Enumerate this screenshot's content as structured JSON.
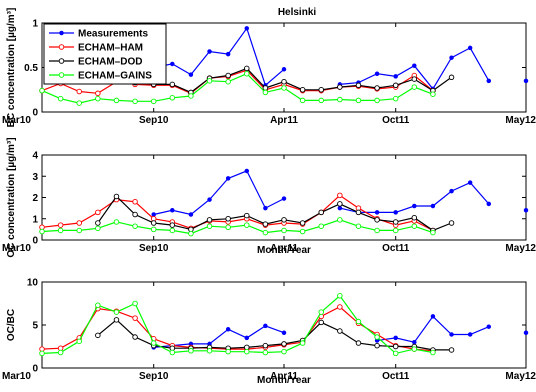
{
  "title": "Helsinki",
  "legend_position": "top-left",
  "legend": [
    {
      "name": "Measurements",
      "color": "#0000ff"
    },
    {
      "name": "ECHAM–HAM",
      "color": "#ff0000"
    },
    {
      "name": "ECHAM–DOD",
      "color": "#000000"
    },
    {
      "name": "ECHAM–GAINS",
      "color": "#00ff00"
    }
  ],
  "chart_data": [
    {
      "type": "line",
      "title": "Helsinki",
      "ylabel": "BC concentration [µg/m³]",
      "xlabel": "",
      "xlim": [
        0,
        26
      ],
      "ylim": [
        0,
        1
      ],
      "yticks": [
        "0",
        "0.5",
        "1"
      ],
      "ytick_values": [
        0,
        0.5,
        1
      ],
      "xticks": [
        "Mar10",
        "Sep10",
        "Apr11",
        "Oct11",
        "May12"
      ],
      "xtick_values": [
        0,
        6,
        13,
        19,
        26
      ],
      "series": [
        {
          "name": "Measurements",
          "color": "#0000ff",
          "values": [
            null,
            null,
            null,
            null,
            null,
            0.37,
            0.5,
            0.54,
            0.42,
            0.68,
            0.65,
            0.94,
            0.3,
            0.48,
            null,
            null,
            0.31,
            0.33,
            0.43,
            0.4,
            0.52,
            0.26,
            0.61,
            0.72,
            0.35,
            null,
            0.35
          ]
        },
        {
          "name": "ECHAM–HAM",
          "color": "#ff0000",
          "values": [
            0.24,
            0.32,
            0.23,
            0.21,
            0.34,
            0.31,
            0.3,
            0.3,
            0.21,
            0.38,
            0.4,
            0.47,
            0.25,
            0.31,
            0.24,
            0.24,
            0.28,
            0.29,
            0.26,
            0.28,
            0.41,
            0.24,
            null,
            null,
            null,
            null,
            null
          ]
        },
        {
          "name": "ECHAM–DOD",
          "color": "#000000",
          "values": [
            null,
            null,
            null,
            null,
            0.35,
            0.33,
            0.31,
            0.31,
            0.22,
            0.38,
            0.41,
            0.49,
            0.27,
            0.34,
            0.25,
            0.25,
            0.28,
            0.3,
            0.27,
            0.3,
            0.37,
            0.24,
            0.39,
            null,
            null,
            null,
            null
          ]
        },
        {
          "name": "ECHAM–GAINS",
          "color": "#00ff00",
          "values": [
            0.24,
            0.15,
            0.1,
            0.15,
            0.13,
            0.12,
            0.12,
            0.16,
            0.18,
            0.35,
            0.34,
            0.43,
            0.22,
            0.27,
            0.13,
            0.13,
            0.14,
            0.13,
            0.13,
            0.15,
            0.28,
            0.2,
            null,
            null,
            null,
            null,
            null
          ]
        }
      ]
    },
    {
      "type": "line",
      "ylabel": "OC concentration [µg/m³]",
      "xlabel": "Month/Year",
      "xlim": [
        0,
        26
      ],
      "ylim": [
        0,
        4
      ],
      "yticks": [
        "0",
        "1",
        "2",
        "3",
        "4"
      ],
      "ytick_values": [
        0,
        1,
        2,
        3,
        4
      ],
      "xticks": [
        "Mar10",
        "Sep10",
        "Apr11",
        "Oct11",
        "May12"
      ],
      "xtick_values": [
        0,
        6,
        13,
        19,
        26
      ],
      "series": [
        {
          "name": "Measurements",
          "color": "#0000ff",
          "values": [
            null,
            null,
            null,
            null,
            null,
            null,
            1.2,
            1.4,
            1.2,
            1.9,
            2.9,
            3.25,
            1.5,
            1.95,
            null,
            null,
            1.5,
            1.3,
            1.3,
            1.3,
            1.6,
            1.6,
            2.3,
            2.7,
            1.7,
            null,
            1.4
          ]
        },
        {
          "name": "ECHAM–HAM",
          "color": "#ff0000",
          "values": [
            0.6,
            0.7,
            0.8,
            1.3,
            1.9,
            1.8,
            1.0,
            0.85,
            0.55,
            0.9,
            0.85,
            1.0,
            0.7,
            0.8,
            0.75,
            1.3,
            2.1,
            1.5,
            1.0,
            0.7,
            0.9,
            0.45,
            null,
            null,
            null,
            null,
            null
          ]
        },
        {
          "name": "ECHAM–DOD",
          "color": "#000000",
          "values": [
            null,
            null,
            null,
            0.8,
            2.05,
            1.2,
            0.8,
            0.7,
            0.5,
            0.95,
            1.0,
            1.15,
            0.75,
            0.95,
            0.8,
            1.3,
            1.7,
            1.3,
            0.95,
            0.85,
            1.05,
            0.45,
            0.8,
            null,
            null,
            null,
            null
          ]
        },
        {
          "name": "ECHAM–GAINS",
          "color": "#00ff00",
          "values": [
            0.4,
            0.45,
            0.45,
            0.55,
            0.85,
            0.65,
            0.5,
            0.45,
            0.3,
            0.65,
            0.6,
            0.7,
            0.35,
            0.45,
            0.4,
            0.65,
            0.95,
            0.65,
            0.45,
            0.45,
            0.65,
            0.35,
            null,
            null,
            null,
            null,
            null
          ]
        }
      ]
    },
    {
      "type": "line",
      "ylabel": "OC/BC",
      "xlabel": "Month/Year",
      "xlim": [
        0,
        26
      ],
      "ylim": [
        0,
        10
      ],
      "yticks": [
        "0",
        "5",
        "10"
      ],
      "ytick_values": [
        0,
        5,
        10
      ],
      "xticks": [
        "Mar10",
        "Sep10",
        "Apr11",
        "Oct11",
        "May12"
      ],
      "xtick_values": [
        0,
        6,
        13,
        19,
        26
      ],
      "series": [
        {
          "name": "Measurements",
          "color": "#0000ff",
          "values": [
            null,
            null,
            null,
            null,
            null,
            null,
            2.4,
            2.6,
            2.8,
            2.8,
            4.5,
            3.5,
            4.9,
            4.1,
            null,
            null,
            null,
            null,
            3.2,
            3.5,
            3.0,
            6.0,
            3.9,
            3.9,
            4.8,
            null,
            4.1
          ]
        },
        {
          "name": "ECHAM–HAM",
          "color": "#ff0000",
          "values": [
            2.2,
            2.3,
            3.5,
            6.9,
            6.6,
            5.8,
            3.4,
            2.6,
            2.4,
            2.3,
            2.2,
            2.2,
            2.4,
            2.7,
            3.0,
            6.0,
            7.1,
            5.2,
            3.9,
            2.6,
            2.2,
            2.0,
            null,
            null,
            null,
            null,
            null
          ]
        },
        {
          "name": "ECHAM–DOD",
          "color": "#000000",
          "values": [
            null,
            null,
            null,
            3.8,
            5.6,
            3.6,
            2.6,
            2.3,
            2.3,
            2.4,
            2.3,
            2.4,
            2.6,
            2.8,
            3.2,
            5.3,
            4.3,
            2.9,
            2.6,
            2.5,
            2.5,
            2.1,
            2.1,
            null,
            null,
            null,
            null
          ]
        },
        {
          "name": "ECHAM–GAINS",
          "color": "#00ff00",
          "values": [
            1.7,
            1.8,
            3.1,
            7.3,
            6.5,
            7.5,
            2.9,
            1.8,
            2.0,
            2.0,
            1.9,
            1.9,
            1.8,
            1.9,
            2.9,
            6.5,
            8.4,
            5.4,
            3.6,
            1.7,
            2.2,
            1.8,
            null,
            null,
            null,
            null,
            null
          ]
        }
      ]
    }
  ]
}
